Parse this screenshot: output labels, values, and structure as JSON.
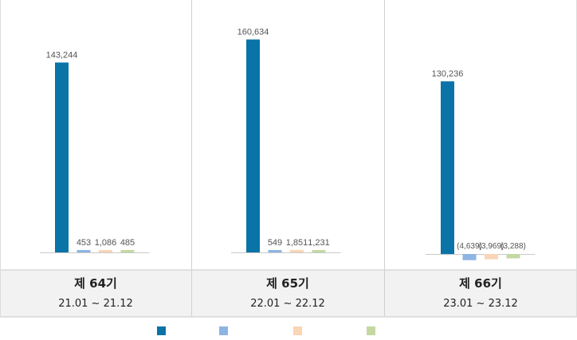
{
  "chart_data": [
    {
      "type": "bar",
      "title": "제 64기",
      "subtitle": "21.01 ~ 21.12",
      "series_values": [
        143244,
        453,
        1086,
        485
      ],
      "labels": [
        "143,244",
        "453",
        "1,086",
        "485"
      ]
    },
    {
      "type": "bar",
      "title": "제 65기",
      "subtitle": "22.01 ~ 22.12",
      "series_values": [
        160634,
        549,
        1851,
        1231
      ],
      "labels": [
        "160,634",
        "549",
        "1,851",
        "1,231"
      ]
    },
    {
      "type": "bar",
      "title": "제 66기",
      "subtitle": "23.01 ~ 23.12",
      "series_values": [
        130236,
        -4639,
        -3969,
        -3288
      ],
      "labels": [
        "130,236",
        "(4,639)",
        "(3,969)",
        "(3,288)"
      ]
    }
  ],
  "colors": [
    "#0a74a8",
    "#8eb4e3",
    "#fad5b6",
    "#c4d9a2"
  ],
  "legend": {
    "placement": "bottom",
    "entries": 4
  }
}
